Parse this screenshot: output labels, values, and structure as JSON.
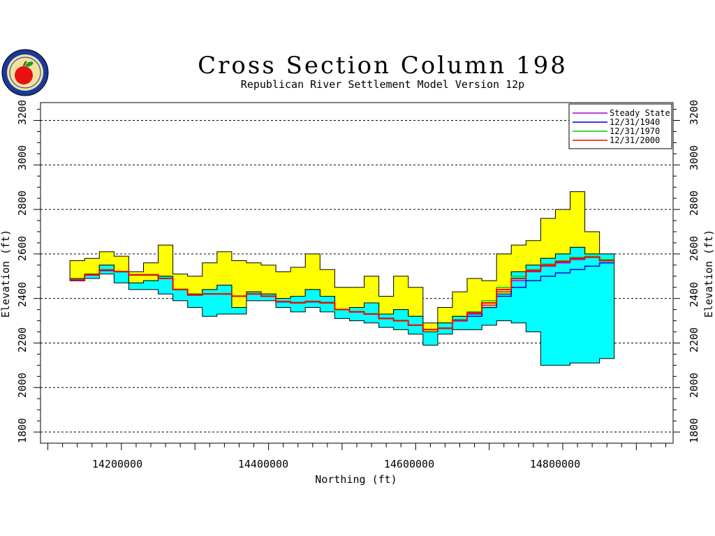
{
  "chart_data": {
    "type": "area",
    "title": "Cross Section Column 198",
    "subtitle": "Republican River Settlement Model Version 12p",
    "xlabel": "Northing (ft)",
    "ylabel": "Elevation (ft)",
    "xlim": [
      14090000,
      14950000
    ],
    "ylim": [
      1750,
      3280
    ],
    "x_ticks": [
      14200000,
      14400000,
      14600000,
      14800000
    ],
    "y_ticks": [
      1800,
      2000,
      2200,
      2400,
      2600,
      2800,
      3000,
      3200
    ],
    "grid": "horizontal dashed",
    "legend_position": "top-right",
    "colors": {
      "upper_layer": "#ffff00",
      "lower_layer": "#00ffff",
      "steady_state": "#aa00cc",
      "y1940": "#0000cc",
      "y1970": "#00cc00",
      "y2000": "#ff0000"
    },
    "layers": {
      "x": [
        14140000,
        14160000,
        14180000,
        14200000,
        14220000,
        14240000,
        14260000,
        14280000,
        14300000,
        14320000,
        14340000,
        14360000,
        14380000,
        14400000,
        14420000,
        14440000,
        14460000,
        14480000,
        14500000,
        14520000,
        14540000,
        14560000,
        14580000,
        14600000,
        14620000,
        14640000,
        14660000,
        14680000,
        14700000,
        14720000,
        14740000,
        14760000,
        14780000,
        14800000,
        14820000,
        14840000,
        14860000
      ],
      "upper_top": [
        2570,
        2580,
        2610,
        2590,
        2520,
        2560,
        2640,
        2510,
        2500,
        2560,
        2610,
        2570,
        2560,
        2550,
        2520,
        2540,
        2600,
        2530,
        2450,
        2450,
        2500,
        2410,
        2500,
        2450,
        2290,
        2360,
        2430,
        2490,
        2480,
        2600,
        2640,
        2660,
        2760,
        2800,
        2880,
        2700,
        2600
      ],
      "upper_bottom": [
        2490,
        2510,
        2550,
        2520,
        2470,
        2480,
        2500,
        2440,
        2420,
        2440,
        2460,
        2360,
        2430,
        2420,
        2400,
        2410,
        2440,
        2410,
        2350,
        2360,
        2380,
        2330,
        2350,
        2320,
        2250,
        2290,
        2320,
        2340,
        2360,
        2420,
        2520,
        2550,
        2580,
        2600,
        2630,
        2600,
        2600
      ],
      "lower_top": [
        2490,
        2510,
        2550,
        2520,
        2470,
        2480,
        2500,
        2440,
        2420,
        2440,
        2460,
        2360,
        2430,
        2420,
        2400,
        2410,
        2440,
        2410,
        2350,
        2360,
        2380,
        2330,
        2350,
        2320,
        2250,
        2290,
        2320,
        2340,
        2360,
        2420,
        2520,
        2550,
        2580,
        2600,
        2630,
        2600,
        2600
      ],
      "lower_bottom": [
        2480,
        2490,
        2510,
        2470,
        2440,
        2440,
        2420,
        2390,
        2360,
        2320,
        2330,
        2330,
        2390,
        2390,
        2360,
        2340,
        2360,
        2340,
        2310,
        2300,
        2290,
        2270,
        2260,
        2240,
        2190,
        2240,
        2260,
        2260,
        2280,
        2300,
        2290,
        2250,
        2100,
        2100,
        2110,
        2110,
        2130
      ]
    },
    "series": [
      {
        "name": "Steady State",
        "values": [
          2480,
          2505,
          2530,
          2520,
          2505,
          2505,
          2490,
          2440,
          2415,
          2420,
          2420,
          2410,
          2420,
          2410,
          2385,
          2380,
          2385,
          2380,
          2350,
          2340,
          2330,
          2310,
          2300,
          2280,
          2260,
          2265,
          2300,
          2330,
          2370,
          2430,
          2480,
          2520,
          2545,
          2560,
          2575,
          2585,
          2570
        ]
      },
      {
        "name": "12/31/1940",
        "values": [
          2480,
          2505,
          2525,
          2520,
          2505,
          2505,
          2490,
          2440,
          2415,
          2420,
          2420,
          2410,
          2420,
          2410,
          2385,
          2380,
          2385,
          2380,
          2350,
          2340,
          2330,
          2310,
          2300,
          2280,
          2260,
          2265,
          2300,
          2320,
          2360,
          2410,
          2450,
          2480,
          2500,
          2515,
          2530,
          2545,
          2560
        ]
      },
      {
        "name": "12/31/1970",
        "values": [
          2485,
          2508,
          2530,
          2522,
          2508,
          2508,
          2492,
          2442,
          2418,
          2422,
          2422,
          2412,
          2422,
          2412,
          2388,
          2383,
          2388,
          2383,
          2352,
          2342,
          2332,
          2312,
          2302,
          2282,
          2262,
          2268,
          2305,
          2340,
          2390,
          2450,
          2500,
          2530,
          2555,
          2570,
          2585,
          2590,
          2575
        ]
      },
      {
        "name": "12/31/2000",
        "values": [
          2483,
          2506,
          2528,
          2521,
          2506,
          2506,
          2490,
          2440,
          2416,
          2420,
          2420,
          2410,
          2420,
          2410,
          2386,
          2381,
          2386,
          2381,
          2350,
          2340,
          2330,
          2310,
          2300,
          2280,
          2260,
          2266,
          2302,
          2335,
          2380,
          2440,
          2490,
          2525,
          2550,
          2565,
          2580,
          2585,
          2570
        ]
      }
    ]
  },
  "axes": {
    "left_ticks": [
      "1800",
      "2000",
      "2200",
      "2400",
      "2600",
      "2800",
      "3000",
      "3200"
    ],
    "right_ticks": [
      "1800",
      "2000",
      "2200",
      "2400",
      "2600",
      "2800",
      "3000",
      "3200"
    ],
    "bottom_ticks": [
      "14200000",
      "14400000",
      "14600000",
      "14800000"
    ],
    "left_label": "Elevation (ft)",
    "right_label": "Elevation (ft)",
    "bottom_label": "Northing (ft)"
  },
  "legend": {
    "items": [
      "Steady State",
      "12/31/1940",
      "12/31/1970",
      "12/31/2000"
    ]
  },
  "logo": {
    "icon": "apple-seal-icon"
  }
}
